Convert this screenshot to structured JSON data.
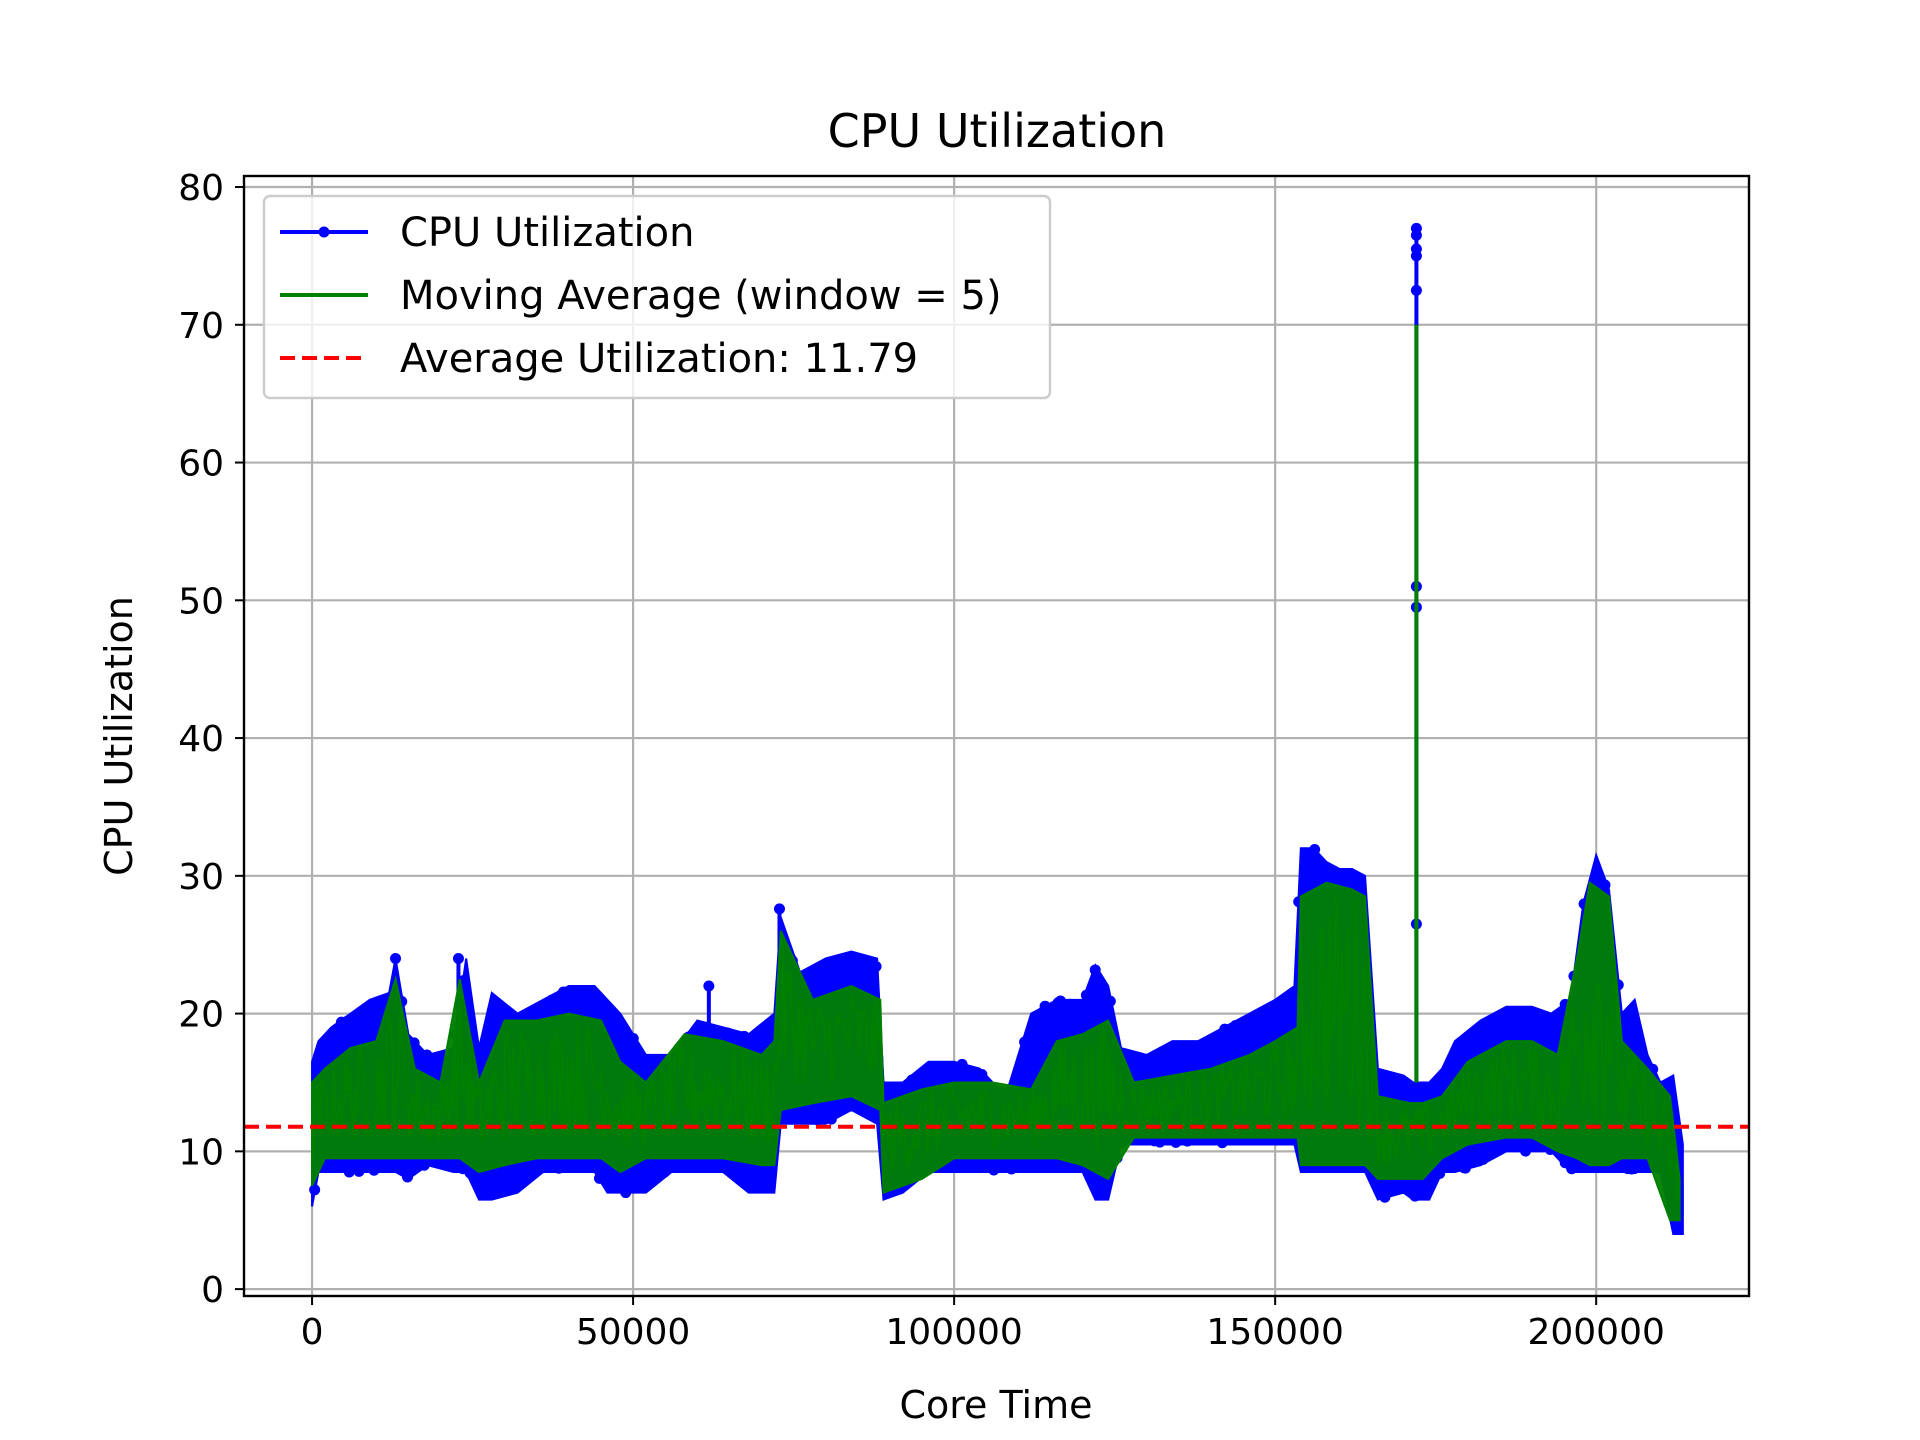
{
  "chart_data": {
    "type": "line",
    "title": "CPU Utilization",
    "xlabel": "Core Time",
    "ylabel": "CPU Utilization",
    "xlim": [
      -10600,
      223800
    ],
    "ylim": [
      -0.5,
      80.8
    ],
    "x_ticks": [
      0,
      50000,
      100000,
      150000,
      200000
    ],
    "x_tick_labels": [
      "0",
      "50000",
      "100000",
      "150000",
      "200000"
    ],
    "y_ticks": [
      0,
      10,
      20,
      30,
      40,
      50,
      60,
      70,
      80
    ],
    "y_tick_labels": [
      "0",
      "10",
      "20",
      "30",
      "40",
      "50",
      "60",
      "70",
      "80"
    ],
    "grid": true,
    "legend_position": "upper-left",
    "series": [
      {
        "name": "CPU Utilization",
        "kind": "line-marker",
        "color": "#0000ff",
        "band_x": [
          0,
          1000,
          3000,
          6000,
          9000,
          12000,
          13000,
          15000,
          18000,
          22000,
          24000,
          26000,
          28000,
          32000,
          36000,
          40000,
          44000,
          46000,
          48000,
          52000,
          56000,
          60000,
          64000,
          68000,
          72000,
          73000,
          76000,
          80000,
          84000,
          88000,
          89000,
          92000,
          96000,
          100000,
          104000,
          108000,
          112000,
          116000,
          120000,
          122000,
          124000,
          126000,
          130000,
          134000,
          138000,
          142000,
          146000,
          150000,
          153000,
          154000,
          156000,
          158000,
          160000,
          162000,
          164000,
          166000,
          170000,
          171500,
          172500,
          174000,
          176000,
          178000,
          182000,
          186000,
          190000,
          193000,
          196000,
          198000,
          200000,
          202000,
          204000,
          206000,
          208000,
          210000,
          212000,
          213500
        ],
        "band_low": [
          6,
          8.5,
          8.5,
          8.5,
          8.5,
          8.5,
          8.5,
          8,
          9,
          8.5,
          8.5,
          6.5,
          6.5,
          7,
          8.5,
          8.5,
          8.5,
          7,
          7,
          7,
          8.5,
          8.5,
          8.5,
          7,
          7,
          12,
          12,
          12,
          13,
          12,
          6.5,
          7,
          8.5,
          8.5,
          8.5,
          8.5,
          8.5,
          8.5,
          8.5,
          6.5,
          6.5,
          10.5,
          10.5,
          10.5,
          10.5,
          10.5,
          10.5,
          10.5,
          10.5,
          8.5,
          8.5,
          8.5,
          8.5,
          8.5,
          8.5,
          6.5,
          7,
          6.5,
          6.5,
          6.5,
          8.5,
          8.5,
          9,
          10,
          10,
          10,
          8.5,
          8.5,
          8.5,
          8.5,
          8.5,
          8.5,
          8.5,
          8.5,
          4,
          4
        ],
        "band_high": [
          16.5,
          18,
          19,
          20,
          21,
          21.5,
          24,
          18.5,
          17,
          17.5,
          24,
          17.5,
          21.5,
          20,
          21,
          22,
          22,
          21,
          20,
          17,
          17,
          19.5,
          19,
          18.5,
          20,
          27,
          23,
          24,
          24.5,
          24,
          15,
          15,
          16.5,
          16.5,
          16,
          14,
          20,
          21,
          21,
          23.5,
          22,
          17.5,
          17,
          18,
          18,
          19,
          20,
          21,
          22,
          32,
          32,
          31,
          30.5,
          30.5,
          30,
          16,
          15.5,
          15,
          15,
          15,
          16,
          18,
          19.5,
          20.5,
          20.5,
          20,
          21,
          28,
          31.5,
          29,
          20,
          21,
          17,
          15,
          15.5,
          10.5
        ],
        "spikes": [
          {
            "x": 172000,
            "low": 15,
            "high": 77,
            "points": [
              77,
              76.5,
              75.5,
              75,
              72.5,
              51,
              49.5,
              26.5
            ]
          },
          {
            "x": 13000,
            "low": 11,
            "high": 24,
            "points": [
              24
            ]
          },
          {
            "x": 22800,
            "low": 11,
            "high": 24,
            "points": [
              24
            ]
          },
          {
            "x": 72800,
            "low": 14,
            "high": 27.6,
            "points": [
              27.6
            ]
          },
          {
            "x": 61800,
            "low": 12,
            "high": 22,
            "points": [
              22
            ]
          }
        ]
      },
      {
        "name": "Moving Average (window = 5)",
        "kind": "line",
        "color": "#008000",
        "band_x": [
          0,
          2000,
          6000,
          10000,
          13000,
          16000,
          20000,
          23000,
          26000,
          30000,
          35000,
          40000,
          45000,
          48000,
          52000,
          58000,
          64000,
          70000,
          72000,
          73000,
          78000,
          84000,
          88500,
          89000,
          95000,
          100000,
          106000,
          112000,
          116000,
          120000,
          124000,
          128000,
          134000,
          140000,
          146000,
          150000,
          153500,
          154000,
          158000,
          162000,
          164000,
          166000,
          171000,
          173000,
          176000,
          180000,
          186000,
          190000,
          194000,
          197000,
          199000,
          202000,
          204000,
          208000,
          211500,
          213000
        ],
        "band_low": [
          7.5,
          9.5,
          9.5,
          9.5,
          9.5,
          9.5,
          9.5,
          9.5,
          8.5,
          9,
          9.5,
          9.5,
          9.5,
          8.5,
          9.5,
          9.5,
          9.5,
          9,
          9,
          13,
          13.5,
          14,
          13,
          7,
          8,
          9.5,
          9.5,
          9.5,
          9.5,
          9,
          8,
          11,
          11,
          11,
          11,
          11,
          11,
          9,
          9,
          9,
          9,
          8,
          8,
          8,
          9.5,
          10.5,
          11,
          11,
          10,
          9.5,
          9,
          9,
          9.5,
          9.5,
          5,
          5
        ],
        "band_high": [
          15,
          16,
          17.5,
          18,
          22.5,
          16,
          15,
          22.5,
          15,
          19.5,
          19.5,
          20,
          19.5,
          16.5,
          15,
          18.5,
          18,
          17,
          18,
          26,
          21,
          22,
          21,
          13.5,
          14.5,
          15,
          15,
          14.5,
          18,
          18.5,
          19.5,
          15,
          15.5,
          16,
          17,
          18,
          19,
          28.5,
          29.5,
          29,
          28.5,
          14,
          13.5,
          13.5,
          14,
          16.5,
          18,
          18,
          17,
          24,
          29.5,
          28.5,
          18,
          16,
          14,
          8
        ],
        "spikes": [
          {
            "x": 172000,
            "low": 15,
            "high": 70,
            "points": []
          }
        ]
      },
      {
        "name": "Average Utilization: 11.79",
        "kind": "dashed-hline",
        "color": "#ff0000",
        "y": 11.79
      }
    ]
  },
  "colors": {
    "cpu_line": "#0000ff",
    "moving_average": "#008000",
    "average_line": "#ff0000",
    "grid": "#b0b0b0"
  }
}
